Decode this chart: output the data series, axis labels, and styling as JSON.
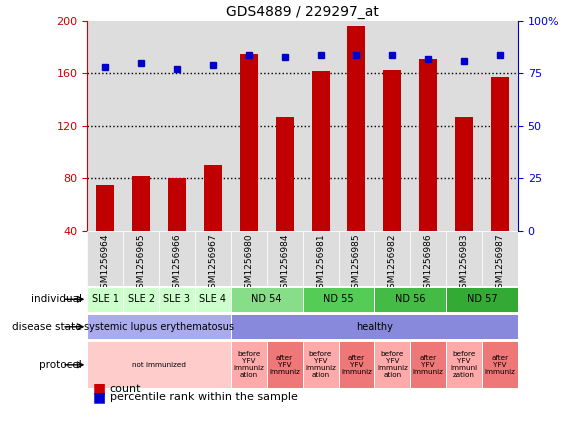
{
  "title": "GDS4889 / 229297_at",
  "samples": [
    "GSM1256964",
    "GSM1256965",
    "GSM1256966",
    "GSM1256967",
    "GSM1256980",
    "GSM1256984",
    "GSM1256981",
    "GSM1256985",
    "GSM1256982",
    "GSM1256986",
    "GSM1256983",
    "GSM1256987"
  ],
  "counts": [
    75,
    82,
    80,
    90,
    175,
    127,
    162,
    196,
    163,
    171,
    127,
    157
  ],
  "percentiles": [
    78,
    80,
    77,
    79,
    84,
    83,
    84,
    84,
    84,
    82,
    81,
    84
  ],
  "ylim_left": [
    40,
    200
  ],
  "ylim_right": [
    0,
    100
  ],
  "yticks_left": [
    40,
    80,
    120,
    160,
    200
  ],
  "yticks_right": [
    0,
    25,
    50,
    75,
    100
  ],
  "bar_color": "#c00000",
  "dot_color": "#0000cc",
  "individual_spans": [
    {
      "label": "SLE 1",
      "start": 0,
      "end": 1,
      "color": "#ccffcc"
    },
    {
      "label": "SLE 2",
      "start": 1,
      "end": 2,
      "color": "#ccffcc"
    },
    {
      "label": "SLE 3",
      "start": 2,
      "end": 3,
      "color": "#ccffcc"
    },
    {
      "label": "SLE 4",
      "start": 3,
      "end": 4,
      "color": "#ccffcc"
    },
    {
      "label": "ND 54",
      "start": 4,
      "end": 6,
      "color": "#88dd88"
    },
    {
      "label": "ND 55",
      "start": 6,
      "end": 8,
      "color": "#55cc55"
    },
    {
      "label": "ND 56",
      "start": 8,
      "end": 10,
      "color": "#44bb44"
    },
    {
      "label": "ND 57",
      "start": 10,
      "end": 12,
      "color": "#33aa33"
    }
  ],
  "disease_spans": [
    {
      "label": "systemic lupus erythematosus",
      "start": 0,
      "end": 4,
      "color": "#aaaaee"
    },
    {
      "label": "healthy",
      "start": 4,
      "end": 12,
      "color": "#8888dd"
    }
  ],
  "protocol_spans": [
    {
      "label": "not immunized",
      "start": 0,
      "end": 4,
      "color": "#ffcccc"
    },
    {
      "label": "before\nYFV\nimmuniz\nation",
      "start": 4,
      "end": 5,
      "color": "#ffaaaa"
    },
    {
      "label": "after\nYFV\nimmuniz",
      "start": 5,
      "end": 6,
      "color": "#ee7777"
    },
    {
      "label": "before\nYFV\nimmuniz\nation",
      "start": 6,
      "end": 7,
      "color": "#ffaaaa"
    },
    {
      "label": "after\nYFV\nimmuniz",
      "start": 7,
      "end": 8,
      "color": "#ee7777"
    },
    {
      "label": "before\nYFV\nimmuniz\nation",
      "start": 8,
      "end": 9,
      "color": "#ffaaaa"
    },
    {
      "label": "after\nYFV\nimmuniz",
      "start": 9,
      "end": 10,
      "color": "#ee7777"
    },
    {
      "label": "before\nYFV\nimmuni\nzation",
      "start": 10,
      "end": 11,
      "color": "#ffaaaa"
    },
    {
      "label": "after\nYFV\nimmuniz",
      "start": 11,
      "end": 12,
      "color": "#ee7777"
    }
  ],
  "row_labels": [
    "individual",
    "disease state",
    "protocol"
  ],
  "bg_color": "#ffffff",
  "left_axis_color": "#cc0000",
  "right_axis_color": "#0000cc",
  "col_bg": "#dddddd",
  "legend_count_color": "#cc0000",
  "legend_pct_color": "#0000cc"
}
